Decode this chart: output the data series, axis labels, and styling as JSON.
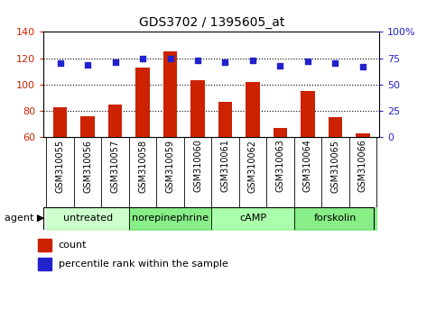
{
  "title": "GDS3702 / 1395605_at",
  "samples": [
    "GSM310055",
    "GSM310056",
    "GSM310057",
    "GSM310058",
    "GSM310059",
    "GSM310060",
    "GSM310061",
    "GSM310062",
    "GSM310063",
    "GSM310064",
    "GSM310065",
    "GSM310066"
  ],
  "counts": [
    83,
    76,
    85,
    113,
    125,
    103,
    87,
    102,
    67,
    95,
    75,
    63
  ],
  "percentiles": [
    70,
    68.5,
    71,
    74.5,
    75,
    73,
    71,
    73,
    68,
    72,
    70,
    67
  ],
  "bar_color": "#cc2200",
  "dot_color": "#2222cc",
  "left_ylim": [
    60,
    140
  ],
  "left_yticks": [
    60,
    80,
    100,
    120,
    140
  ],
  "right_ylim": [
    0,
    100
  ],
  "right_yticks": [
    0,
    25,
    50,
    75,
    100
  ],
  "right_yticklabels": [
    "0",
    "25",
    "50",
    "75",
    "100%"
  ],
  "agent_groups": [
    {
      "label": "untreated",
      "start": 0,
      "end": 3,
      "color": "#ccffcc"
    },
    {
      "label": "norepinephrine",
      "start": 3,
      "end": 6,
      "color": "#88ee88"
    },
    {
      "label": "cAMP",
      "start": 6,
      "end": 9,
      "color": "#aaffaa"
    },
    {
      "label": "forskolin",
      "start": 9,
      "end": 12,
      "color": "#88ee88"
    }
  ],
  "grid_yticks": [
    80,
    100,
    120
  ],
  "legend_count_label": "count",
  "legend_pct_label": "percentile rank within the sample",
  "bar_width": 0.5,
  "figwidth": 4.83,
  "figheight": 3.54,
  "dpi": 100
}
